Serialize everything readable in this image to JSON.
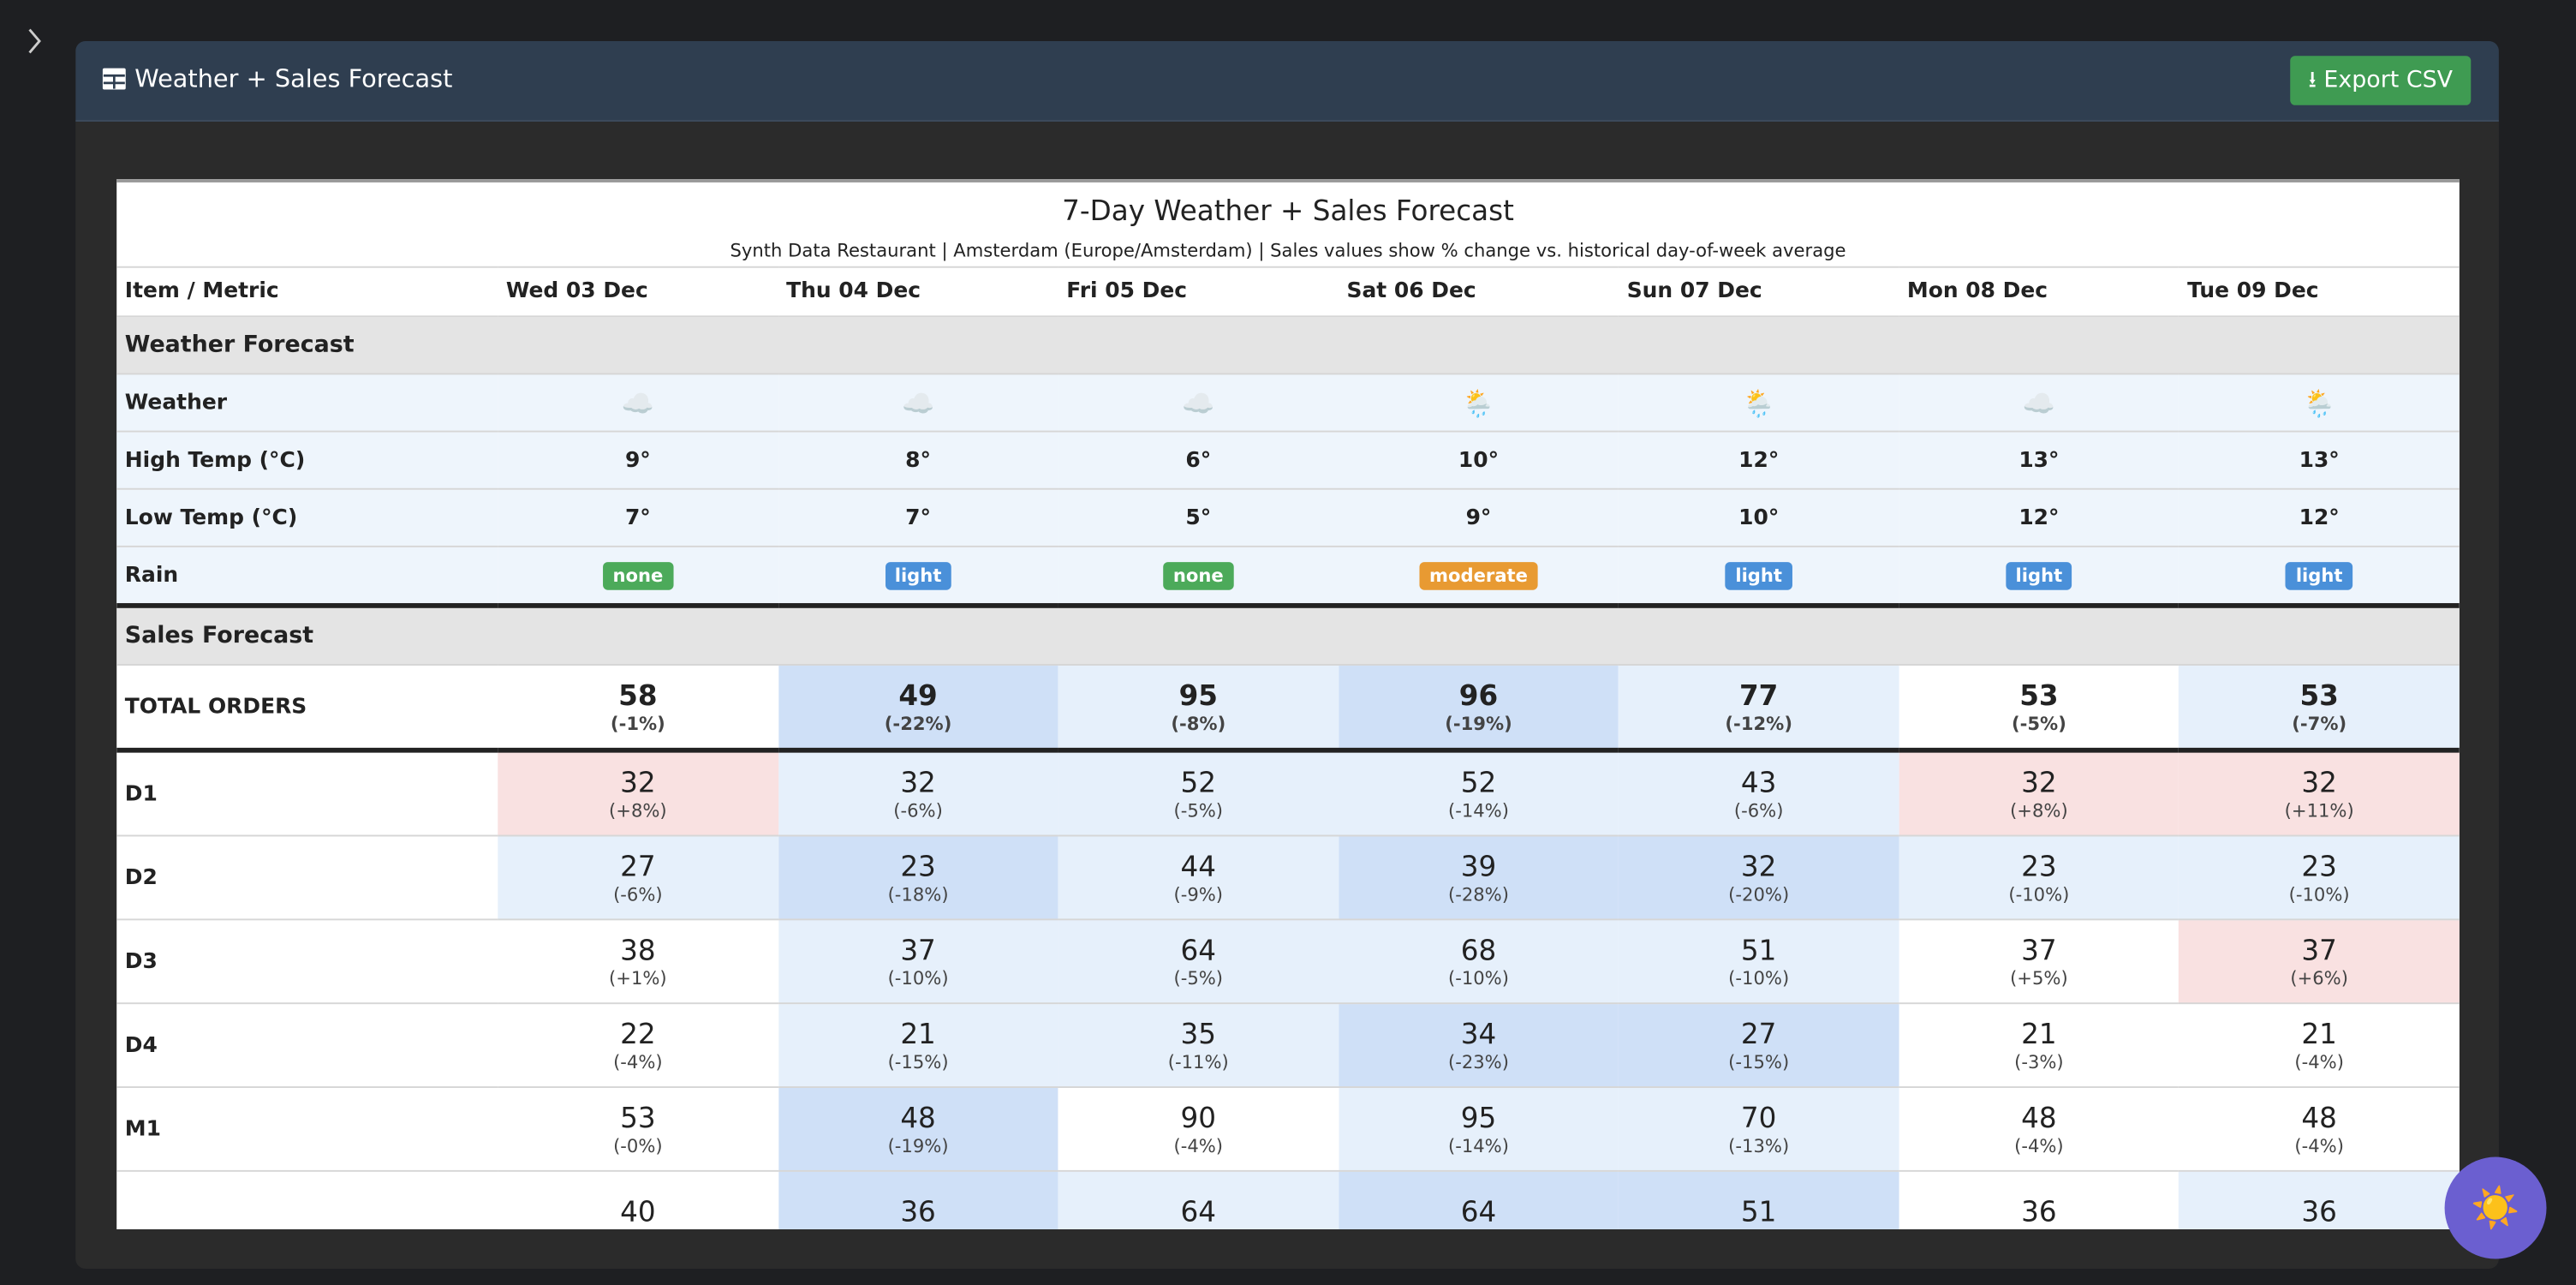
{
  "header": {
    "title": "Weather + Sales Forecast",
    "export_button": "Export CSV"
  },
  "table": {
    "title": "7-Day Weather + Sales Forecast",
    "subtitle": "Synth Data Restaurant | Amsterdam (Europe/Amsterdam) | Sales values show % change vs. historical day-of-week average",
    "corner": "Item / Metric",
    "columns": [
      "Wed 03 Dec",
      "Thu 04 Dec",
      "Fri 05 Dec",
      "Sat 06 Dec",
      "Sun 07 Dec",
      "Mon 08 Dec",
      "Tue 09 Dec"
    ],
    "weather_section": {
      "title": "Weather Forecast",
      "rows": [
        {
          "label": "Weather",
          "cells": [
            "☁️",
            "☁️",
            "☁️",
            "🌦️",
            "🌦️",
            "☁️",
            "🌦️"
          ]
        },
        {
          "label": "High Temp (°C)",
          "cells": [
            "9°",
            "8°",
            "6°",
            "10°",
            "12°",
            "13°",
            "13°"
          ]
        },
        {
          "label": "Low Temp (°C)",
          "cells": [
            "7°",
            "7°",
            "5°",
            "9°",
            "10°",
            "12°",
            "12°"
          ]
        },
        {
          "label": "Rain",
          "badges": [
            {
              "text": "none",
              "color": "#4caa5a"
            },
            {
              "text": "light",
              "color": "#4a90d9"
            },
            {
              "text": "none",
              "color": "#4caa5a"
            },
            {
              "text": "moderate",
              "color": "#e89a32"
            },
            {
              "text": "light",
              "color": "#4a90d9"
            },
            {
              "text": "light",
              "color": "#4a90d9"
            },
            {
              "text": "light",
              "color": "#4a90d9"
            }
          ]
        }
      ]
    },
    "sales_section": {
      "title": "Sales Forecast",
      "total": {
        "label": "TOTAL ORDERS",
        "cells": [
          {
            "orders": 58,
            "change": "(-1%)",
            "color": "#ffffff"
          },
          {
            "orders": 49,
            "change": "(-22%)",
            "color": "#cfe0f7"
          },
          {
            "orders": 95,
            "change": "(-8%)",
            "color": "#e6f0fb"
          },
          {
            "orders": 96,
            "change": "(-19%)",
            "color": "#cfe0f7"
          },
          {
            "orders": 77,
            "change": "(-12%)",
            "color": "#e6f0fb"
          },
          {
            "orders": 53,
            "change": "(-5%)",
            "color": "#ffffff"
          },
          {
            "orders": 53,
            "change": "(-7%)",
            "color": "#e6f0fb"
          }
        ]
      },
      "rows": [
        {
          "label": "D1",
          "cells": [
            {
              "orders": 32,
              "change": "(+8%)",
              "color": "#f9e1e1"
            },
            {
              "orders": 32,
              "change": "(-6%)",
              "color": "#e6f0fb"
            },
            {
              "orders": 52,
              "change": "(-5%)",
              "color": "#e6f0fb"
            },
            {
              "orders": 52,
              "change": "(-14%)",
              "color": "#e6f0fb"
            },
            {
              "orders": 43,
              "change": "(-6%)",
              "color": "#e6f0fb"
            },
            {
              "orders": 32,
              "change": "(+8%)",
              "color": "#f9e1e1"
            },
            {
              "orders": 32,
              "change": "(+11%)",
              "color": "#f9e1e1"
            }
          ]
        },
        {
          "label": "D2",
          "cells": [
            {
              "orders": 27,
              "change": "(-6%)",
              "color": "#e6f0fb"
            },
            {
              "orders": 23,
              "change": "(-18%)",
              "color": "#cfe0f7"
            },
            {
              "orders": 44,
              "change": "(-9%)",
              "color": "#e6f0fb"
            },
            {
              "orders": 39,
              "change": "(-28%)",
              "color": "#cfe0f7"
            },
            {
              "orders": 32,
              "change": "(-20%)",
              "color": "#cfe0f7"
            },
            {
              "orders": 23,
              "change": "(-10%)",
              "color": "#e6f0fb"
            },
            {
              "orders": 23,
              "change": "(-10%)",
              "color": "#e6f0fb"
            }
          ]
        },
        {
          "label": "D3",
          "cells": [
            {
              "orders": 38,
              "change": "(+1%)",
              "color": "#ffffff"
            },
            {
              "orders": 37,
              "change": "(-10%)",
              "color": "#e6f0fb"
            },
            {
              "orders": 64,
              "change": "(-5%)",
              "color": "#e6f0fb"
            },
            {
              "orders": 68,
              "change": "(-10%)",
              "color": "#e6f0fb"
            },
            {
              "orders": 51,
              "change": "(-10%)",
              "color": "#e6f0fb"
            },
            {
              "orders": 37,
              "change": "(+5%)",
              "color": "#ffffff"
            },
            {
              "orders": 37,
              "change": "(+6%)",
              "color": "#f9e1e1"
            }
          ]
        },
        {
          "label": "D4",
          "cells": [
            {
              "orders": 22,
              "change": "(-4%)",
              "color": "#ffffff"
            },
            {
              "orders": 21,
              "change": "(-15%)",
              "color": "#e6f0fb"
            },
            {
              "orders": 35,
              "change": "(-11%)",
              "color": "#e6f0fb"
            },
            {
              "orders": 34,
              "change": "(-23%)",
              "color": "#cfe0f7"
            },
            {
              "orders": 27,
              "change": "(-15%)",
              "color": "#cfe0f7"
            },
            {
              "orders": 21,
              "change": "(-3%)",
              "color": "#ffffff"
            },
            {
              "orders": 21,
              "change": "(-4%)",
              "color": "#ffffff"
            }
          ]
        },
        {
          "label": "M1",
          "cells": [
            {
              "orders": 53,
              "change": "(-0%)",
              "color": "#ffffff"
            },
            {
              "orders": 48,
              "change": "(-19%)",
              "color": "#cfe0f7"
            },
            {
              "orders": 90,
              "change": "(-4%)",
              "color": "#ffffff"
            },
            {
              "orders": 95,
              "change": "(-14%)",
              "color": "#e6f0fb"
            },
            {
              "orders": 70,
              "change": "(-13%)",
              "color": "#e6f0fb"
            },
            {
              "orders": 48,
              "change": "(-4%)",
              "color": "#ffffff"
            },
            {
              "orders": 48,
              "change": "(-4%)",
              "color": "#ffffff"
            }
          ]
        },
        {
          "label": null,
          "cells": [
            {
              "orders": 40,
              "change": null,
              "color": "#ffffff"
            },
            {
              "orders": 36,
              "change": null,
              "color": "#cfe0f7"
            },
            {
              "orders": 64,
              "change": null,
              "color": "#e6f0fb"
            },
            {
              "orders": 64,
              "change": null,
              "color": "#cfe0f7"
            },
            {
              "orders": 51,
              "change": null,
              "color": "#cfe0f7"
            },
            {
              "orders": 36,
              "change": null,
              "color": "#ffffff"
            },
            {
              "orders": 36,
              "change": null,
              "color": "#e6f0fb"
            }
          ]
        }
      ]
    }
  },
  "theme_button": "☀️"
}
